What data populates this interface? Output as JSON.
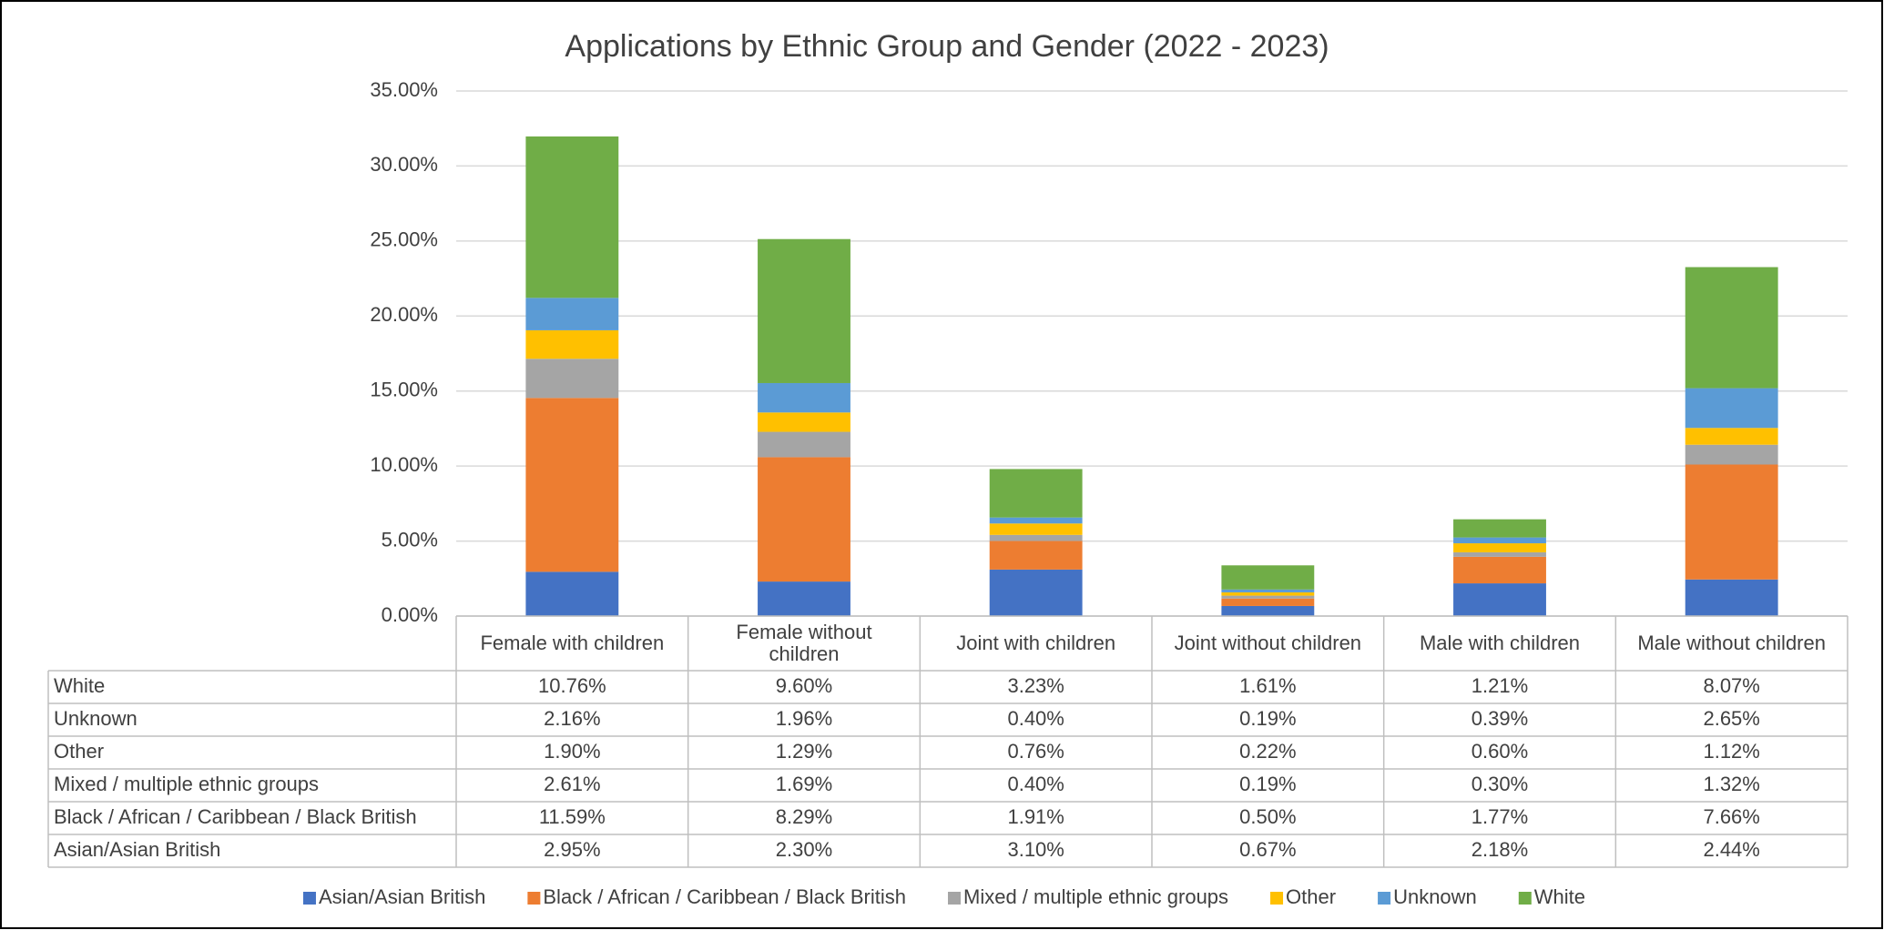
{
  "chart_data": {
    "type": "stacked_bar",
    "title": "Applications by Ethnic Group and Gender (2022 - 2023)",
    "categories": [
      "Female with children",
      "Female without children",
      "Joint with children",
      "Joint without children",
      "Male with children",
      "Male without children"
    ],
    "series": [
      {
        "name": "Asian/Asian British",
        "color": "#4472c4",
        "values": [
          2.95,
          2.3,
          3.1,
          0.67,
          2.18,
          2.44
        ],
        "value_labels": [
          "2.95%",
          "2.30%",
          "3.10%",
          "0.67%",
          "2.18%",
          "2.44%"
        ]
      },
      {
        "name": "Black / African / Caribbean / Black British",
        "color": "#ed7d31",
        "values": [
          11.59,
          8.29,
          1.91,
          0.5,
          1.77,
          7.66
        ],
        "value_labels": [
          "11.59%",
          "8.29%",
          "1.91%",
          "0.50%",
          "1.77%",
          "7.66%"
        ]
      },
      {
        "name": "Mixed / multiple ethnic groups",
        "color": "#a5a5a5",
        "values": [
          2.61,
          1.69,
          0.4,
          0.19,
          0.3,
          1.32
        ],
        "value_labels": [
          "2.61%",
          "1.69%",
          "0.40%",
          "0.19%",
          "0.30%",
          "1.32%"
        ]
      },
      {
        "name": "Other",
        "color": "#ffc000",
        "values": [
          1.9,
          1.29,
          0.76,
          0.22,
          0.6,
          1.12
        ],
        "value_labels": [
          "1.90%",
          "1.29%",
          "0.76%",
          "0.22%",
          "0.60%",
          "1.12%"
        ]
      },
      {
        "name": "Unknown",
        "color": "#5b9bd5",
        "values": [
          2.16,
          1.96,
          0.4,
          0.19,
          0.39,
          2.65
        ],
        "value_labels": [
          "2.16%",
          "1.96%",
          "0.40%",
          "0.19%",
          "0.39%",
          "2.65%"
        ]
      },
      {
        "name": "White",
        "color": "#70ad47",
        "values": [
          10.76,
          9.6,
          3.23,
          1.61,
          1.21,
          8.07
        ],
        "value_labels": [
          "10.76%",
          "9.60%",
          "3.23%",
          "1.61%",
          "1.21%",
          "8.07%"
        ]
      }
    ],
    "ylim": [
      0,
      35
    ],
    "yticks": [
      {
        "value": 0,
        "label": "0.00%"
      },
      {
        "value": 5,
        "label": "5.00%"
      },
      {
        "value": 10,
        "label": "10.00%"
      },
      {
        "value": 15,
        "label": "15.00%"
      },
      {
        "value": 20,
        "label": "20.00%"
      },
      {
        "value": 25,
        "label": "25.00%"
      },
      {
        "value": 30,
        "label": "30.00%"
      },
      {
        "value": 35,
        "label": "35.00%"
      }
    ],
    "grid": true,
    "legend": "bottom"
  }
}
